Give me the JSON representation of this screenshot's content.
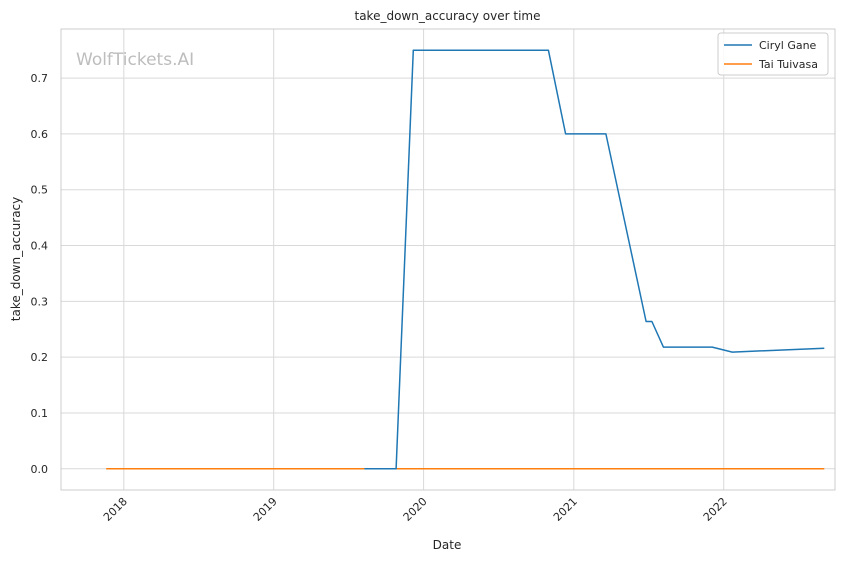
{
  "chart_data": {
    "type": "line",
    "title": "take_down_accuracy over time",
    "xlabel": "Date",
    "ylabel": "take_down_accuracy",
    "watermark": "WolfTickets.AI",
    "x_tick_labels": [
      "2018",
      "2019",
      "2020",
      "2021",
      "2022"
    ],
    "y_tick_labels": [
      "0.0",
      "0.1",
      "0.2",
      "0.3",
      "0.4",
      "0.5",
      "0.6",
      "0.7"
    ],
    "ylim": [
      -0.038,
      0.788
    ],
    "xlim": [
      "2017-08-01",
      "2022-09-29"
    ],
    "grid": true,
    "legend_position": "top-right",
    "series": [
      {
        "name": "Ciryl Gane",
        "color": "#1f77b4",
        "points": [
          [
            "2019-08-10",
            0.0
          ],
          [
            "2019-10-26",
            0.0
          ],
          [
            "2019-12-07",
            0.75
          ],
          [
            "2020-10-31",
            0.75
          ],
          [
            "2020-12-12",
            0.6
          ],
          [
            "2021-03-20",
            0.6
          ],
          [
            "2021-06-26",
            0.264
          ],
          [
            "2021-07-10",
            0.264
          ],
          [
            "2021-08-07",
            0.218
          ],
          [
            "2021-12-04",
            0.218
          ],
          [
            "2022-01-22",
            0.209
          ],
          [
            "2022-09-03",
            0.216
          ]
        ]
      },
      {
        "name": "Tai Tuivasa",
        "color": "#ff7f0e",
        "points": [
          [
            "2017-11-19",
            0.0
          ],
          [
            "2018-06-09",
            0.0
          ],
          [
            "2018-12-02",
            0.0
          ],
          [
            "2019-10-05",
            0.0
          ],
          [
            "2020-10-31",
            0.0
          ],
          [
            "2021-02-20",
            0.0
          ],
          [
            "2021-07-24",
            0.0
          ],
          [
            "2021-10-30",
            0.0
          ],
          [
            "2022-02-12",
            0.0
          ],
          [
            "2022-09-03",
            0.0
          ]
        ]
      }
    ]
  }
}
